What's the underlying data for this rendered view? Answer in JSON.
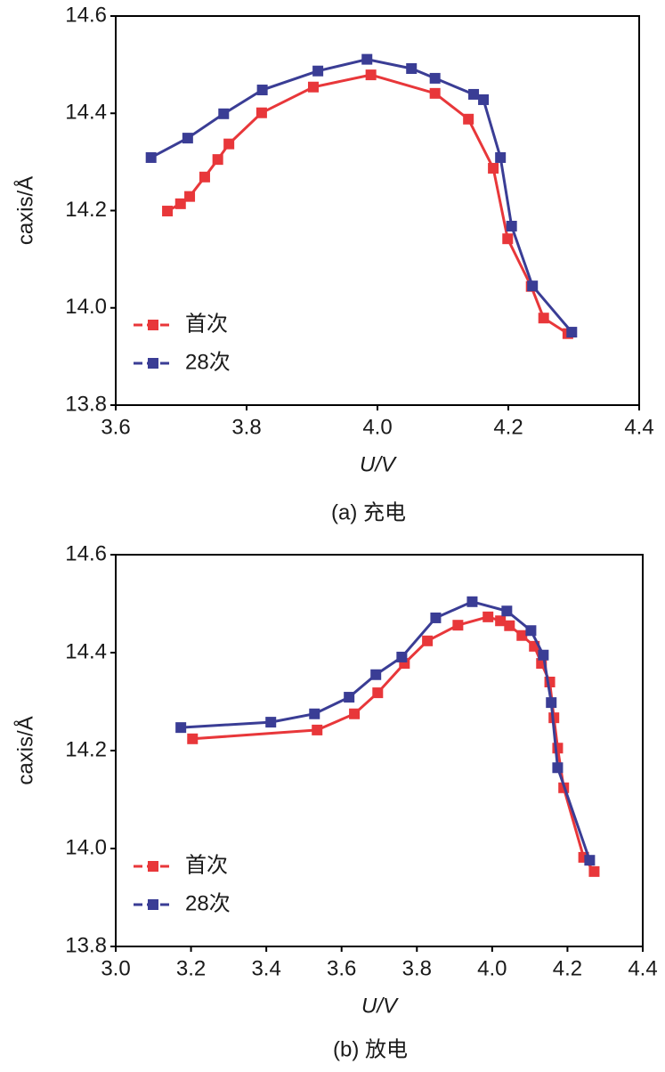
{
  "chart_data": [
    {
      "type": "line",
      "title": "(a) 充电",
      "xlabel": "U/V",
      "ylabel": "caxis/Å",
      "xlim": [
        3.6,
        4.4
      ],
      "xticks": [
        3.6,
        3.8,
        {
          "value": 4.0,
          "label": "4.0"
        },
        4.2,
        4.4
      ],
      "ylim": [
        13.8,
        14.6
      ],
      "yticks": [
        13.8,
        {
          "value": 14.0,
          "label": "14.0"
        },
        14.2,
        14.4,
        14.6
      ],
      "legend": "lower left",
      "series": [
        {
          "name": "首次",
          "color": "#e8373a",
          "x": [
            3.679,
            3.699,
            3.713,
            3.736,
            3.756,
            3.773,
            3.823,
            3.902,
            3.99,
            4.088,
            4.139,
            4.177,
            4.199,
            4.235,
            4.254,
            4.291
          ],
          "values": [
            14.199,
            14.214,
            14.229,
            14.269,
            14.305,
            14.337,
            14.401,
            14.454,
            14.479,
            14.441,
            14.388,
            14.287,
            14.142,
            14.044,
            13.979,
            13.947
          ]
        },
        {
          "name": "28次",
          "color": "#3a3d95",
          "x": [
            3.654,
            3.71,
            3.765,
            3.824,
            3.909,
            3.984,
            4.052,
            4.088,
            4.147,
            4.162,
            4.188,
            4.205,
            4.237,
            4.297
          ],
          "values": [
            14.309,
            14.349,
            14.399,
            14.448,
            14.487,
            14.511,
            14.492,
            14.472,
            14.439,
            14.428,
            14.309,
            14.168,
            14.045,
            13.95
          ]
        }
      ]
    },
    {
      "type": "line",
      "title": "(b) 放电",
      "xlabel": "U/V",
      "ylabel": "caxis/Å",
      "xlim": [
        3.0,
        4.4
      ],
      "xticks": [
        {
          "value": 3.0,
          "label": "3.0"
        },
        3.2,
        3.4,
        3.6,
        3.8,
        {
          "value": 4.0,
          "label": "4.0"
        },
        4.2,
        4.4
      ],
      "ylim": [
        13.8,
        14.6
      ],
      "yticks": [
        13.8,
        {
          "value": 14.0,
          "label": "14.0"
        },
        14.2,
        14.4,
        14.6
      ],
      "legend": "lower left",
      "series": [
        {
          "name": "首次",
          "color": "#e8373a",
          "x": [
            3.204,
            3.535,
            3.634,
            3.696,
            3.767,
            3.828,
            3.909,
            3.989,
            4.022,
            4.046,
            4.079,
            4.112,
            4.131,
            4.153,
            4.164,
            4.174,
            4.19,
            4.243,
            4.271
          ],
          "values": [
            14.224,
            14.242,
            14.275,
            14.318,
            14.378,
            14.424,
            14.456,
            14.473,
            14.465,
            14.455,
            14.435,
            14.413,
            14.378,
            14.34,
            14.267,
            14.205,
            14.124,
            13.982,
            13.953
          ]
        },
        {
          "name": "28次",
          "color": "#3a3d95",
          "x": [
            3.173,
            3.412,
            3.528,
            3.62,
            3.691,
            3.76,
            3.85,
            3.947,
            4.039,
            4.103,
            4.136,
            4.157,
            4.174,
            4.259
          ],
          "values": [
            14.247,
            14.258,
            14.275,
            14.309,
            14.355,
            14.391,
            14.471,
            14.504,
            14.485,
            14.445,
            14.395,
            14.298,
            14.165,
            13.976
          ]
        }
      ]
    }
  ]
}
